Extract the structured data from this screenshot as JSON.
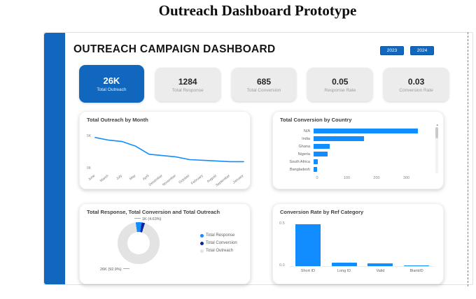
{
  "page_title": "Outreach Dashboard Prototype",
  "colors": {
    "accent_blue": "#1167BE",
    "chart_blue": "#118DFF",
    "dark_navy": "#12239E",
    "donut_gray": "#e3e3e3",
    "kpi_card_gray": "#ececec"
  },
  "dashboard": {
    "title": "OUTREACH CAMPAIGN DASHBOARD",
    "year_buttons": [
      {
        "label": "2023"
      },
      {
        "label": "2024"
      }
    ],
    "kpis": [
      {
        "value": "26K",
        "label": "Total Outreach",
        "highlighted": true
      },
      {
        "value": "1284",
        "label": "Total Response",
        "highlighted": false
      },
      {
        "value": "685",
        "label": "Total Conversion",
        "highlighted": false
      },
      {
        "value": "0.05",
        "label": "Response Rate",
        "highlighted": false
      },
      {
        "value": "0.03",
        "label": "Conversion Rate",
        "highlighted": false
      }
    ]
  },
  "chart_data": [
    {
      "type": "line",
      "title": "Total Outreach by Month",
      "categories": [
        "June",
        "March",
        "July",
        "May",
        "April",
        "December",
        "November",
        "October",
        "February",
        "August",
        "September",
        "January"
      ],
      "values": [
        4.5,
        4.1,
        3.9,
        3.2,
        2.0,
        1.8,
        1.6,
        1.2,
        1.1,
        1.0,
        0.9,
        0.9
      ],
      "unit": "K",
      "yticks": [
        "0K",
        "5K"
      ],
      "ylim": [
        0,
        5
      ],
      "legend": "none",
      "grid": false
    },
    {
      "type": "bar",
      "orientation": "horizontal",
      "title": "Total Conversion by Country",
      "categories": [
        "N/A",
        "India",
        "Ghana",
        "Nigeria",
        "South Africa",
        "Bangladesh"
      ],
      "values": [
        350,
        170,
        55,
        48,
        13,
        12
      ],
      "xticks": [
        0,
        100,
        200,
        300
      ],
      "xlim": [
        0,
        360
      ],
      "legend": "none",
      "grid": false,
      "has_scrollbar": true
    },
    {
      "type": "pie",
      "subtype": "donut",
      "title": "Total Response, Total Conversion and Total Outreach",
      "slices": [
        {
          "name": "Total Response",
          "pct": 4.63,
          "value_label": "1K (4.63%)"
        },
        {
          "name": "Total Conversion",
          "pct": 2.47,
          "value_label": ""
        },
        {
          "name": "Total Outreach",
          "pct": 92.9,
          "value_label": "26K (92.9%)"
        }
      ],
      "start_angle_deg": 352,
      "legend_position": "right"
    },
    {
      "type": "bar",
      "orientation": "vertical",
      "title": "Conversion Rate by Ref Category",
      "categories": [
        "Short ID",
        "Long ID",
        "Valid",
        "BlankID"
      ],
      "values": [
        0.5,
        0.04,
        0.03,
        0.005
      ],
      "yticks": [
        "0.0",
        "0.5"
      ],
      "ylim": [
        0,
        0.5
      ],
      "legend": "none",
      "grid": false
    }
  ]
}
